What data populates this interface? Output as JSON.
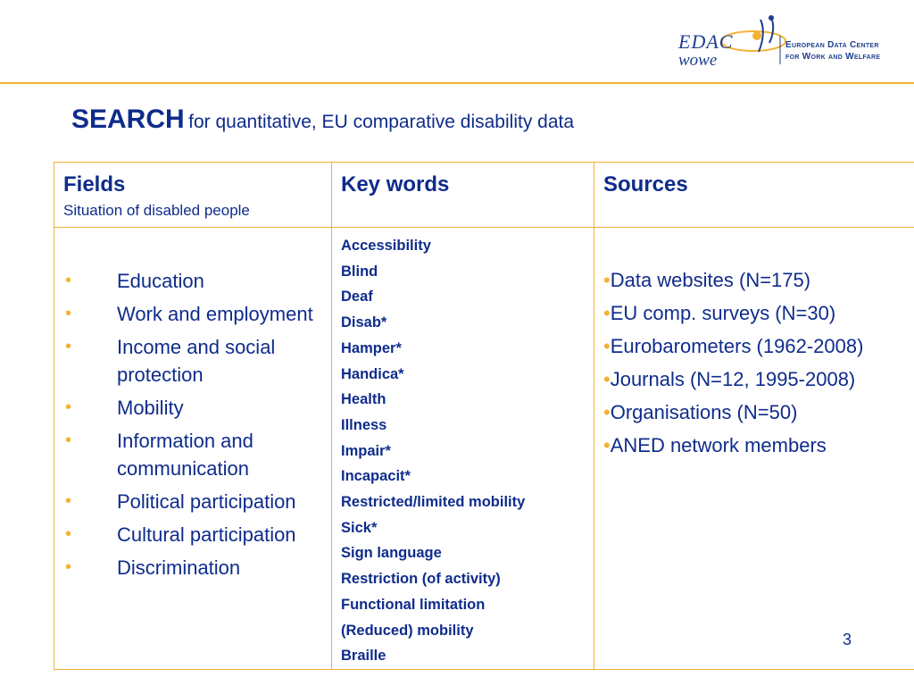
{
  "logo": {
    "main_text": "EDAC",
    "sub_text": "wowe",
    "org_line1": "European Data Center",
    "org_line2": "for Work and Welfare"
  },
  "title": {
    "main": "SEARCH",
    "sub": "for quantitative, EU comparative disability data"
  },
  "table": {
    "headers": {
      "fields": "Fields",
      "fields_sub": "Situation of disabled people",
      "keywords": "Key words",
      "sources": "Sources"
    },
    "fields": [
      "Education",
      "Work and employment",
      "Income and social protection",
      "Mobility",
      "Information and communication",
      "Political participation",
      "Cultural participation",
      "Discrimination"
    ],
    "keywords": [
      "Accessibility",
      "Blind",
      "Deaf",
      "Disab*",
      "Hamper*",
      "Handica*",
      "Health",
      "Illness",
      "Impair*",
      "Incapacit*",
      "Restricted/limited mobility",
      "Sick*",
      "Sign language",
      "Restriction (of activity)",
      "Functional limitation",
      "(Reduced) mobility",
      "Braille"
    ],
    "sources": [
      "Data websites (N=175)",
      "EU comp. surveys (N=30)",
      "Eurobarometers (1962-2008)",
      "Journals (N=12, 1995-2008)",
      "Organisations (N=50)",
      "ANED network members"
    ]
  },
  "page_number": "3",
  "colors": {
    "accent": "#f2b233",
    "text": "#0f2c8c"
  }
}
